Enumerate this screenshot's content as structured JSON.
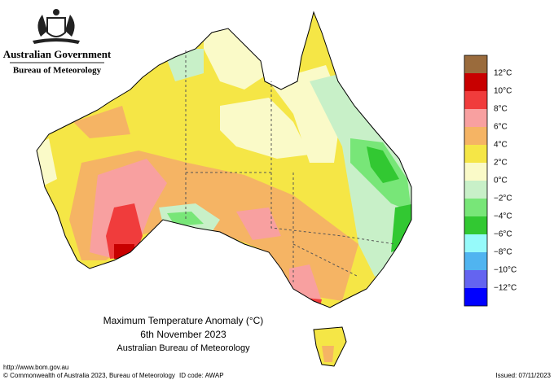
{
  "header": {
    "agency": "Australian Government",
    "bureau": "Bureau of Meteorology"
  },
  "title": {
    "line1": "Maximum Temperature Anomaly (°C)",
    "line2": "6th November 2023",
    "line3": "Australian Bureau of Meteorology"
  },
  "legend": [
    {
      "label": "12°C",
      "color": "#9a6b3c"
    },
    {
      "label": "10°C",
      "color": "#c80000"
    },
    {
      "label": "8°C",
      "color": "#f03c3c"
    },
    {
      "label": "6°C",
      "color": "#f8a0a0"
    },
    {
      "label": "4°C",
      "color": "#f5b464"
    },
    {
      "label": "2°C",
      "color": "#f5e646"
    },
    {
      "label": "0°C",
      "color": "#fafac8"
    },
    {
      "label": "−2°C",
      "color": "#c8f0c8"
    },
    {
      "label": "−4°C",
      "color": "#78e678"
    },
    {
      "label": "−6°C",
      "color": "#32c832"
    },
    {
      "label": "−8°C",
      "color": "#96fafa"
    },
    {
      "label": "−10°C",
      "color": "#50b4f0"
    },
    {
      "label": "−12°C",
      "color": "#6464f0"
    }
  ],
  "legend_bottom_color": "#0000ff",
  "footer": {
    "url": "http://www.bom.gov.au",
    "copyright": "© Commonwealth of Australia 2023, Bureau of Meteorology",
    "id_code": "ID code: AWAP",
    "issued": "Issued: 07/11/2023"
  }
}
